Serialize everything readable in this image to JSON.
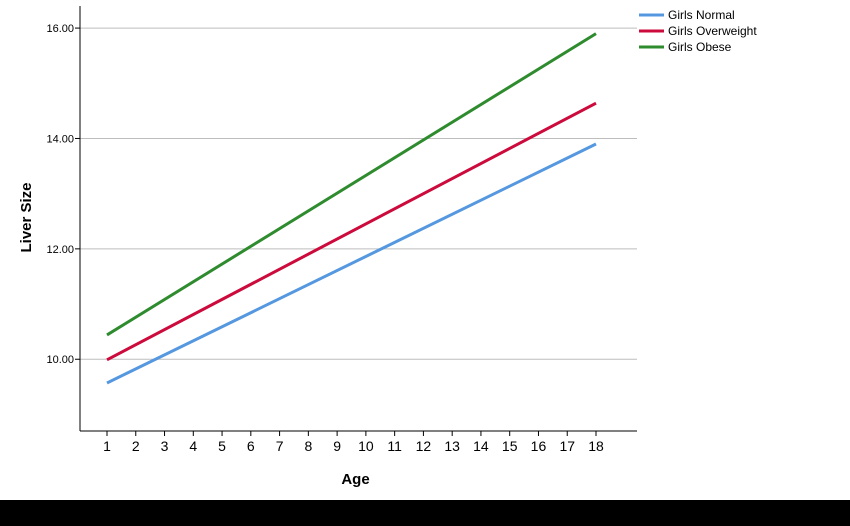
{
  "chart_data": {
    "type": "line",
    "title": "",
    "xlabel": "Age",
    "ylabel": "Liver Size",
    "x": [
      1,
      2,
      3,
      4,
      5,
      6,
      7,
      8,
      9,
      10,
      11,
      12,
      13,
      14,
      15,
      16,
      17,
      18
    ],
    "ylim": [
      8.7,
      16.4
    ],
    "yticks": [
      "10.00",
      "12.00",
      "14.00",
      "16.00"
    ],
    "ytick_values": [
      10,
      12,
      14,
      16
    ],
    "grid": true,
    "legend_position": "top-right",
    "series": [
      {
        "name": "Girls Normal",
        "color": "#5598e0",
        "start": [
          1,
          9.57
        ],
        "end": [
          18,
          13.9
        ]
      },
      {
        "name": "Girls Overweight",
        "color": "#cc0a3c",
        "start": [
          1,
          9.99
        ],
        "end": [
          18,
          14.64
        ]
      },
      {
        "name": "Girls Obese",
        "color": "#2e8b2e",
        "start": [
          1,
          10.44
        ],
        "end": [
          18,
          15.9
        ]
      }
    ]
  }
}
